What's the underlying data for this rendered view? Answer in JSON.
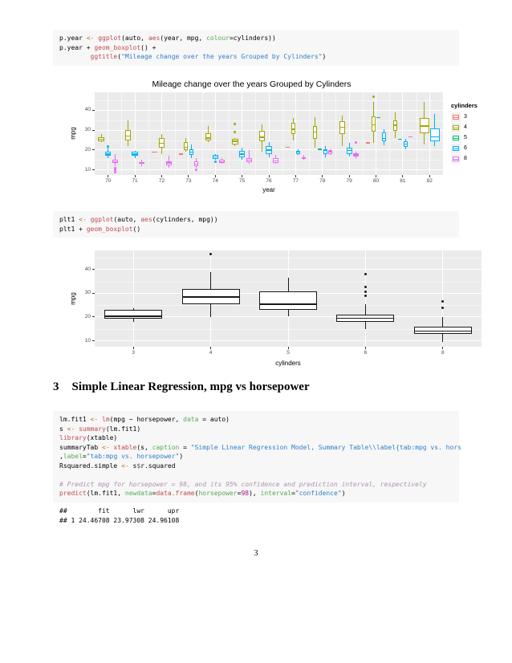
{
  "page": {
    "footer_page_number": "3"
  },
  "heading": {
    "number": "3",
    "text": "Simple Linear Regression, mpg vs horsepower"
  },
  "colors": {
    "code_background": "#f7f7f7",
    "panel_background": "#ebebeb",
    "gridline": "#ffffff",
    "axis_text": "#4d4d4d",
    "syntax": {
      "std": "#000000",
      "kwb": "#bd7029",
      "kwd": "#bf4a4f",
      "kwc": "#55aa55",
      "str": "#317ecc",
      "num": "#af0f91",
      "com": "#ad95af",
      "opt": "#555555"
    },
    "cylinder_palette": {
      "3": "#f8766d",
      "4": "#a3a500",
      "5": "#00bf7d",
      "6": "#00b0f6",
      "8": "#e76bf3"
    }
  },
  "code_blocks": [
    {
      "lines": [
        [
          [
            "p.year ",
            "std"
          ],
          [
            "<-",
            "kwb"
          ],
          [
            " ",
            "std"
          ],
          [
            "ggplot",
            "kwd"
          ],
          [
            "(auto, ",
            "std"
          ],
          [
            "aes",
            "kwd"
          ],
          [
            "(year, mpg, ",
            "std"
          ],
          [
            "colour",
            "kwc"
          ],
          [
            "=cylinders))",
            "std"
          ]
        ],
        [
          [
            "p.year + ",
            "std"
          ],
          [
            "geom_boxplot",
            "kwd"
          ],
          [
            "() +",
            "std"
          ]
        ],
        [
          [
            "        ",
            "std"
          ],
          [
            "ggtitle",
            "kwd"
          ],
          [
            "(",
            "std"
          ],
          [
            "\"Mileage change over the years Grouped by Cylinders\"",
            "str"
          ],
          [
            ")",
            "std"
          ]
        ]
      ]
    },
    {
      "lines": [
        [
          [
            "plt1 ",
            "std"
          ],
          [
            "<-",
            "kwb"
          ],
          [
            " ",
            "std"
          ],
          [
            "ggplot",
            "kwd"
          ],
          [
            "(auto, ",
            "std"
          ],
          [
            "aes",
            "kwd"
          ],
          [
            "(cylinders, mpg))",
            "std"
          ]
        ],
        [
          [
            "plt1 + ",
            "std"
          ],
          [
            "geom_boxplot",
            "kwd"
          ],
          [
            "()",
            "std"
          ]
        ]
      ]
    },
    {
      "lines": [
        [
          [
            "lm.fit1 ",
            "std"
          ],
          [
            "<-",
            "kwb"
          ],
          [
            " ",
            "std"
          ],
          [
            "lm",
            "kwd"
          ],
          [
            "(mpg ~ horsepower, ",
            "std"
          ],
          [
            "data",
            "kwc"
          ],
          [
            " = auto)",
            "std"
          ]
        ],
        [
          [
            "s ",
            "std"
          ],
          [
            "<-",
            "kwb"
          ],
          [
            " ",
            "std"
          ],
          [
            "summary",
            "kwd"
          ],
          [
            "(lm.fit1)",
            "std"
          ]
        ],
        [
          [
            "library",
            "kwd"
          ],
          [
            "(xtable)",
            "std"
          ]
        ],
        [
          [
            "summaryTab ",
            "std"
          ],
          [
            "<-",
            "kwb"
          ],
          [
            " ",
            "std"
          ],
          [
            "xtable",
            "kwd"
          ],
          [
            "(s, ",
            "std"
          ],
          [
            "caption",
            "kwc"
          ],
          [
            " = ",
            "std"
          ],
          [
            "\"Simple Linear Regression Model, Summary Table\\\\label{tab:mpg vs. hors",
            "str"
          ]
        ],
        [
          [
            ",",
            "std"
          ],
          [
            "label",
            "kwc"
          ],
          [
            "=",
            "std"
          ],
          [
            "\"tab:mpg vs. horsepower\"",
            "str"
          ],
          [
            ")",
            "std"
          ]
        ],
        [
          [
            "Rsquared.simple ",
            "std"
          ],
          [
            "<-",
            "kwb"
          ],
          [
            " s",
            "std"
          ],
          [
            "$",
            "opt"
          ],
          [
            "r.squared",
            "std"
          ]
        ],
        [],
        [
          [
            "# Predict mpg for horsepower = 98, and its 95% confidence and prediction interval, respectively",
            "com"
          ]
        ],
        [
          [
            "predict",
            "kwd"
          ],
          [
            "(lm.fit1, ",
            "std"
          ],
          [
            "newdata",
            "kwc"
          ],
          [
            "=",
            "std"
          ],
          [
            "data.frame",
            "kwd"
          ],
          [
            "(",
            "std"
          ],
          [
            "horsepower",
            "kwc"
          ],
          [
            "=",
            "std"
          ],
          [
            "98",
            "num"
          ],
          [
            "), ",
            "std"
          ],
          [
            "interval",
            "kwc"
          ],
          [
            "=",
            "std"
          ],
          [
            "\"confidence\"",
            "str"
          ],
          [
            ")",
            "std"
          ]
        ]
      ]
    }
  ],
  "output_block": {
    "lines": [
      "##        fit      lwr      upr",
      "## 1 24.46708 23.97308 24.96108"
    ]
  },
  "chart_data": [
    {
      "type": "boxplot",
      "title": "Mileage change over the years Grouped by Cylinders",
      "xlabel": "year",
      "ylabel": "mpg",
      "x_tick_labels": [
        "70",
        "71",
        "72",
        "73",
        "74",
        "75",
        "76",
        "77",
        "78",
        "79",
        "80",
        "81",
        "82"
      ],
      "y_ticks": [
        10,
        20,
        30,
        40
      ],
      "ylim": [
        7.5,
        49
      ],
      "grid": true,
      "legend": {
        "title": "cylinders",
        "position": "right",
        "entries": [
          "3",
          "4",
          "5",
          "6",
          "8"
        ]
      },
      "group_field": "cylinders",
      "boxes": [
        {
          "x": "70",
          "g": "4",
          "lo": 24,
          "q1": 24.5,
          "med": 25.5,
          "q3": 26.5,
          "hi": 28
        },
        {
          "x": "70",
          "g": "6",
          "lo": 16,
          "q1": 17,
          "med": 18,
          "q3": 19,
          "hi": 21,
          "out": [
            22
          ]
        },
        {
          "x": "70",
          "g": "8",
          "lo": 12,
          "q1": 13.5,
          "med": 14,
          "q3": 15,
          "hi": 18,
          "out": [
            9,
            10,
            11
          ]
        },
        {
          "x": "71",
          "g": "4",
          "lo": 22,
          "q1": 25,
          "med": 27,
          "q3": 30,
          "hi": 35
        },
        {
          "x": "71",
          "g": "6",
          "lo": 16,
          "q1": 17,
          "med": 18,
          "q3": 19,
          "hi": 19.5
        },
        {
          "x": "71",
          "g": "8",
          "lo": 12,
          "q1": 13,
          "med": 13.5,
          "q3": 14,
          "hi": 15
        },
        {
          "x": "72",
          "g": "3",
          "lo": 19,
          "q1": 19,
          "med": 19,
          "q3": 19,
          "hi": 19
        },
        {
          "x": "72",
          "g": "4",
          "lo": 18,
          "q1": 21,
          "med": 23.5,
          "q3": 26,
          "hi": 28
        },
        {
          "x": "72",
          "g": "8",
          "lo": 11,
          "q1": 12.5,
          "med": 13.5,
          "q3": 14.5,
          "hi": 17
        },
        {
          "x": "73",
          "g": "3",
          "lo": 18,
          "q1": 18,
          "med": 18,
          "q3": 18,
          "hi": 18
        },
        {
          "x": "73",
          "g": "4",
          "lo": 19,
          "q1": 20,
          "med": 21.5,
          "q3": 24,
          "hi": 26
        },
        {
          "x": "73",
          "g": "6",
          "lo": 16,
          "q1": 17.5,
          "med": 19,
          "q3": 20.5,
          "hi": 23
        },
        {
          "x": "73",
          "g": "8",
          "lo": 11,
          "q1": 12,
          "med": 13,
          "q3": 14.5,
          "hi": 16,
          "out": [
            10
          ]
        },
        {
          "x": "74",
          "g": "4",
          "lo": 24,
          "q1": 25,
          "med": 26,
          "q3": 28.5,
          "hi": 32
        },
        {
          "x": "74",
          "g": "6",
          "lo": 15,
          "q1": 15.5,
          "med": 16.5,
          "q3": 17.5,
          "hi": 18,
          "out": [
            14
          ]
        },
        {
          "x": "74",
          "g": "8",
          "lo": 13,
          "q1": 13.5,
          "med": 14,
          "q3": 15,
          "hi": 16
        },
        {
          "x": "75",
          "g": "4",
          "lo": 22,
          "q1": 23,
          "med": 24.5,
          "q3": 25.5,
          "hi": 26,
          "out": [
            29,
            33
          ]
        },
        {
          "x": "75",
          "g": "6",
          "lo": 15,
          "q1": 16.5,
          "med": 18,
          "q3": 19.5,
          "hi": 21
        },
        {
          "x": "75",
          "g": "8",
          "lo": 13,
          "q1": 14,
          "med": 15,
          "q3": 16,
          "hi": 20
        },
        {
          "x": "76",
          "g": "4",
          "lo": 19,
          "q1": 24.5,
          "med": 26.5,
          "q3": 29.5,
          "hi": 33
        },
        {
          "x": "76",
          "g": "6",
          "lo": 16.5,
          "q1": 18,
          "med": 20,
          "q3": 22,
          "hi": 24
        },
        {
          "x": "76",
          "g": "8",
          "lo": 13,
          "q1": 13.5,
          "med": 14.5,
          "q3": 16,
          "hi": 17.5
        },
        {
          "x": "77",
          "g": "3",
          "lo": 21.5,
          "q1": 21.5,
          "med": 21.5,
          "q3": 21.5,
          "hi": 21.5
        },
        {
          "x": "77",
          "g": "4",
          "lo": 25,
          "q1": 28,
          "med": 30.5,
          "q3": 33.5,
          "hi": 36
        },
        {
          "x": "77",
          "g": "6",
          "lo": 17.5,
          "q1": 18,
          "med": 19,
          "q3": 19.5,
          "hi": 20.5
        },
        {
          "x": "77",
          "g": "8",
          "lo": 15,
          "q1": 15.5,
          "med": 16,
          "q3": 16.5,
          "hi": 17.5
        },
        {
          "x": "78",
          "g": "4",
          "lo": 21,
          "q1": 25.5,
          "med": 29,
          "q3": 32,
          "hi": 36.5
        },
        {
          "x": "78",
          "g": "5",
          "lo": 20.3,
          "q1": 20.3,
          "med": 20.3,
          "q3": 20.3,
          "hi": 20.3
        },
        {
          "x": "78",
          "g": "6",
          "lo": 16.2,
          "q1": 18,
          "med": 19.7,
          "q3": 20.5,
          "hi": 22
        },
        {
          "x": "78",
          "g": "8",
          "lo": 17.5,
          "q1": 18.1,
          "med": 19.1,
          "q3": 19.9,
          "hi": 20.2
        },
        {
          "x": "79",
          "g": "4",
          "lo": 22,
          "q1": 27.9,
          "med": 31.5,
          "q3": 34.3,
          "hi": 37.3
        },
        {
          "x": "79",
          "g": "6",
          "lo": 16.9,
          "q1": 18.1,
          "med": 19.8,
          "q3": 21.1,
          "hi": 23.8
        },
        {
          "x": "79",
          "g": "8",
          "lo": 15.5,
          "q1": 16.9,
          "med": 17.6,
          "q3": 18.4,
          "hi": 19.2,
          "out": [
            23.9
          ]
        },
        {
          "x": "80",
          "g": "3",
          "lo": 23.7,
          "q1": 23.7,
          "med": 23.7,
          "q3": 23.7,
          "hi": 23.7
        },
        {
          "x": "80",
          "g": "4",
          "lo": 23.5,
          "q1": 29.3,
          "med": 32.7,
          "q3": 37.1,
          "hi": 44.3,
          "out": [
            46.6
          ]
        },
        {
          "x": "80",
          "g": "5",
          "lo": 36.4,
          "q1": 36.4,
          "med": 36.4,
          "q3": 36.4,
          "hi": 36.4
        },
        {
          "x": "80",
          "g": "6",
          "lo": 22.5,
          "q1": 24.3,
          "med": 25.8,
          "q3": 28.8,
          "hi": 30.5
        },
        {
          "x": "81",
          "g": "4",
          "lo": 26,
          "q1": 29.5,
          "med": 32.4,
          "q3": 34.8,
          "hi": 39.1
        },
        {
          "x": "81",
          "g": "5",
          "lo": 25.4,
          "q1": 25.4,
          "med": 25.4,
          "q3": 25.4,
          "hi": 25.4
        },
        {
          "x": "81",
          "g": "6",
          "lo": 20.2,
          "q1": 21.6,
          "med": 23,
          "q3": 24.4,
          "hi": 25.8
        },
        {
          "x": "81",
          "g": "8",
          "lo": 26.6,
          "q1": 26.6,
          "med": 26.6,
          "q3": 26.6,
          "hi": 26.6
        },
        {
          "x": "82",
          "g": "4",
          "lo": 23,
          "q1": 28.6,
          "med": 32,
          "q3": 36,
          "hi": 44
        },
        {
          "x": "82",
          "g": "6",
          "lo": 22,
          "q1": 24.3,
          "med": 26.6,
          "q3": 30.7,
          "hi": 38
        }
      ]
    },
    {
      "type": "boxplot",
      "title": "",
      "xlabel": "cylinders",
      "ylabel": "mpg",
      "x_tick_labels": [
        "3",
        "4",
        "5",
        "6",
        "8"
      ],
      "y_ticks": [
        10,
        20,
        30,
        40
      ],
      "ylim": [
        7.5,
        48
      ],
      "grid": true,
      "boxes": [
        {
          "x": "3",
          "lo": 18,
          "q1": 19.2,
          "med": 20.25,
          "q3": 22.9,
          "hi": 23.7
        },
        {
          "x": "4",
          "lo": 20,
          "q1": 25.3,
          "med": 28.4,
          "q3": 31.8,
          "hi": 39,
          "out": [
            46.6
          ]
        },
        {
          "x": "5",
          "lo": 20.3,
          "q1": 22.9,
          "med": 25.4,
          "q3": 30.9,
          "hi": 36.4
        },
        {
          "x": "6",
          "lo": 15,
          "q1": 18,
          "med": 19.5,
          "q3": 21,
          "hi": 25.4,
          "out": [
            28.8,
            30.7,
            32.7,
            38
          ]
        },
        {
          "x": "8",
          "lo": 9.5,
          "q1": 13,
          "med": 14,
          "q3": 16,
          "hi": 19.9,
          "out": [
            23.9,
            26.6
          ]
        }
      ]
    }
  ]
}
